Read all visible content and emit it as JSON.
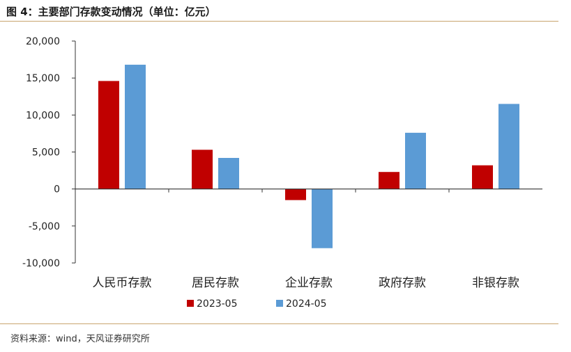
{
  "title": "图 4：主要部门存款变动情况（单位：亿元）",
  "source": "资料来源：wind，天风证券研究所",
  "colors": {
    "series_2023": "#c00000",
    "series_2024": "#5b9bd5",
    "rule": "#c8a46e",
    "axis": "#333333"
  },
  "chart_data": {
    "type": "bar",
    "title": "图 4：主要部门存款变动情况（单位：亿元）",
    "xlabel": "",
    "ylabel": "",
    "ylim": [
      -10000,
      20000
    ],
    "yticks": [
      20000,
      15000,
      10000,
      5000,
      0,
      -5000,
      -10000
    ],
    "ytick_labels": [
      "20,000",
      "15,000",
      "10,000",
      "5,000",
      "0",
      "-5,000",
      "-10,000"
    ],
    "categories": [
      "人民币存款",
      "居民存款",
      "企业存款",
      "政府存款",
      "非银存款"
    ],
    "series": [
      {
        "name": "2023-05",
        "color": "#c00000",
        "values": [
          14600,
          5300,
          -1500,
          2300,
          3200
        ]
      },
      {
        "name": "2024-05",
        "color": "#5b9bd5",
        "values": [
          16800,
          4200,
          -8000,
          7600,
          11500
        ]
      }
    ],
    "grid": false,
    "legend": "bottom-center"
  }
}
